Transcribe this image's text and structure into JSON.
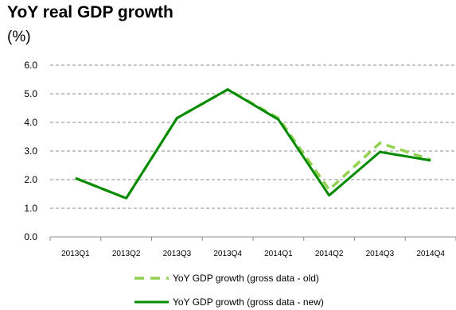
{
  "chart_data": {
    "type": "line",
    "title": "YoY real GDP growth",
    "subtitle": "(%)",
    "categories": [
      "2013Q1",
      "2013Q2",
      "2013Q3",
      "2013Q4",
      "2014Q1",
      "2014Q2",
      "2014Q3",
      "2014Q4"
    ],
    "ylim": [
      0,
      6
    ],
    "yticks": [
      "0.0",
      "1.0",
      "2.0",
      "3.0",
      "4.0",
      "5.0",
      "6.0"
    ],
    "grid": true,
    "legend_position": "bottom",
    "series": [
      {
        "name": "YoY GDP growth (gross data - old)",
        "color": "#92D050",
        "dashed": true,
        "values": [
          2.05,
          1.35,
          4.15,
          5.15,
          4.15,
          1.65,
          3.28,
          2.7
        ]
      },
      {
        "name": "YoY GDP growth (gross data - new)",
        "color": "#008A00",
        "dashed": false,
        "values": [
          2.05,
          1.35,
          4.15,
          5.15,
          4.1,
          1.45,
          2.97,
          2.67
        ]
      }
    ]
  }
}
